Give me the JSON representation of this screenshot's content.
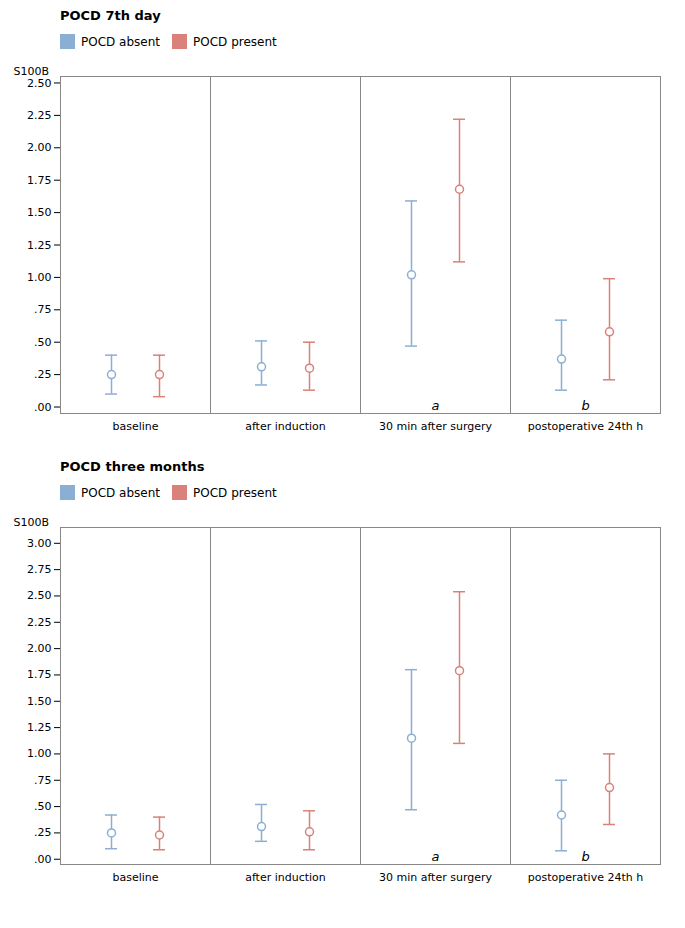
{
  "chart_data": [
    {
      "type": "errorbar",
      "title": "POCD 7th day",
      "y_label": "S100B",
      "categories": [
        "baseline",
        "after induction",
        "30 min after surgery",
        "postoperative 24th h"
      ],
      "ylim": [
        -0.05,
        2.55
      ],
      "yticks": [
        {
          "value": 0.0,
          "label": ".00"
        },
        {
          "value": 0.25,
          "label": ".25"
        },
        {
          "value": 0.5,
          "label": ".50"
        },
        {
          "value": 0.75,
          "label": ".75"
        },
        {
          "value": 1.0,
          "label": "1.00"
        },
        {
          "value": 1.25,
          "label": "1.25"
        },
        {
          "value": 1.5,
          "label": "1.50"
        },
        {
          "value": 1.75,
          "label": "1.75"
        },
        {
          "value": 2.0,
          "label": "2.00"
        },
        {
          "value": 2.25,
          "label": "2.25"
        },
        {
          "value": 2.5,
          "label": "2.50"
        }
      ],
      "annotations": [
        {
          "text": "a",
          "category": "30 min after surgery"
        },
        {
          "text": "b",
          "category": "postoperative 24th h"
        }
      ],
      "legend": "top",
      "series": [
        {
          "name": "POCD absent",
          "color": "#8bafd4",
          "marker": "circle",
          "values": [
            0.25,
            0.31,
            1.02,
            0.37
          ],
          "lower": [
            0.1,
            0.17,
            0.47,
            0.13
          ],
          "upper": [
            0.4,
            0.51,
            1.59,
            0.67
          ]
        },
        {
          "name": "POCD present",
          "color": "#d9817a",
          "marker": "circle",
          "values": [
            0.25,
            0.3,
            1.68,
            0.58
          ],
          "lower": [
            0.08,
            0.13,
            1.12,
            0.21
          ],
          "upper": [
            0.4,
            0.5,
            2.22,
            0.99
          ]
        }
      ]
    },
    {
      "type": "errorbar",
      "title": "POCD three months",
      "y_label": "S100B",
      "categories": [
        "baseline",
        "after induction",
        "30 min after surgery",
        "postoperative 24th h"
      ],
      "ylim": [
        -0.05,
        3.15
      ],
      "yticks": [
        {
          "value": 0.0,
          "label": ".00"
        },
        {
          "value": 0.25,
          "label": ".25"
        },
        {
          "value": 0.5,
          "label": ".50"
        },
        {
          "value": 0.75,
          "label": ".75"
        },
        {
          "value": 1.0,
          "label": "1.00"
        },
        {
          "value": 1.25,
          "label": "1.25"
        },
        {
          "value": 1.5,
          "label": "1.50"
        },
        {
          "value": 1.75,
          "label": "1.75"
        },
        {
          "value": 2.0,
          "label": "2.00"
        },
        {
          "value": 2.25,
          "label": "2.25"
        },
        {
          "value": 2.5,
          "label": "2.50"
        },
        {
          "value": 2.75,
          "label": "2.75"
        },
        {
          "value": 3.0,
          "label": "3.00"
        }
      ],
      "annotations": [
        {
          "text": "a",
          "category": "30 min after surgery"
        },
        {
          "text": "b",
          "category": "postoperative 24th h"
        }
      ],
      "legend": "top",
      "series": [
        {
          "name": "POCD absent",
          "color": "#8bafd4",
          "marker": "circle",
          "values": [
            0.25,
            0.31,
            1.15,
            0.42
          ],
          "lower": [
            0.1,
            0.17,
            0.47,
            0.08
          ],
          "upper": [
            0.42,
            0.52,
            1.8,
            0.75
          ]
        },
        {
          "name": "POCD present",
          "color": "#d9817a",
          "marker": "circle",
          "values": [
            0.23,
            0.26,
            1.79,
            0.68
          ],
          "lower": [
            0.09,
            0.09,
            1.1,
            0.33
          ],
          "upper": [
            0.4,
            0.46,
            2.54,
            1.0
          ]
        }
      ]
    }
  ]
}
